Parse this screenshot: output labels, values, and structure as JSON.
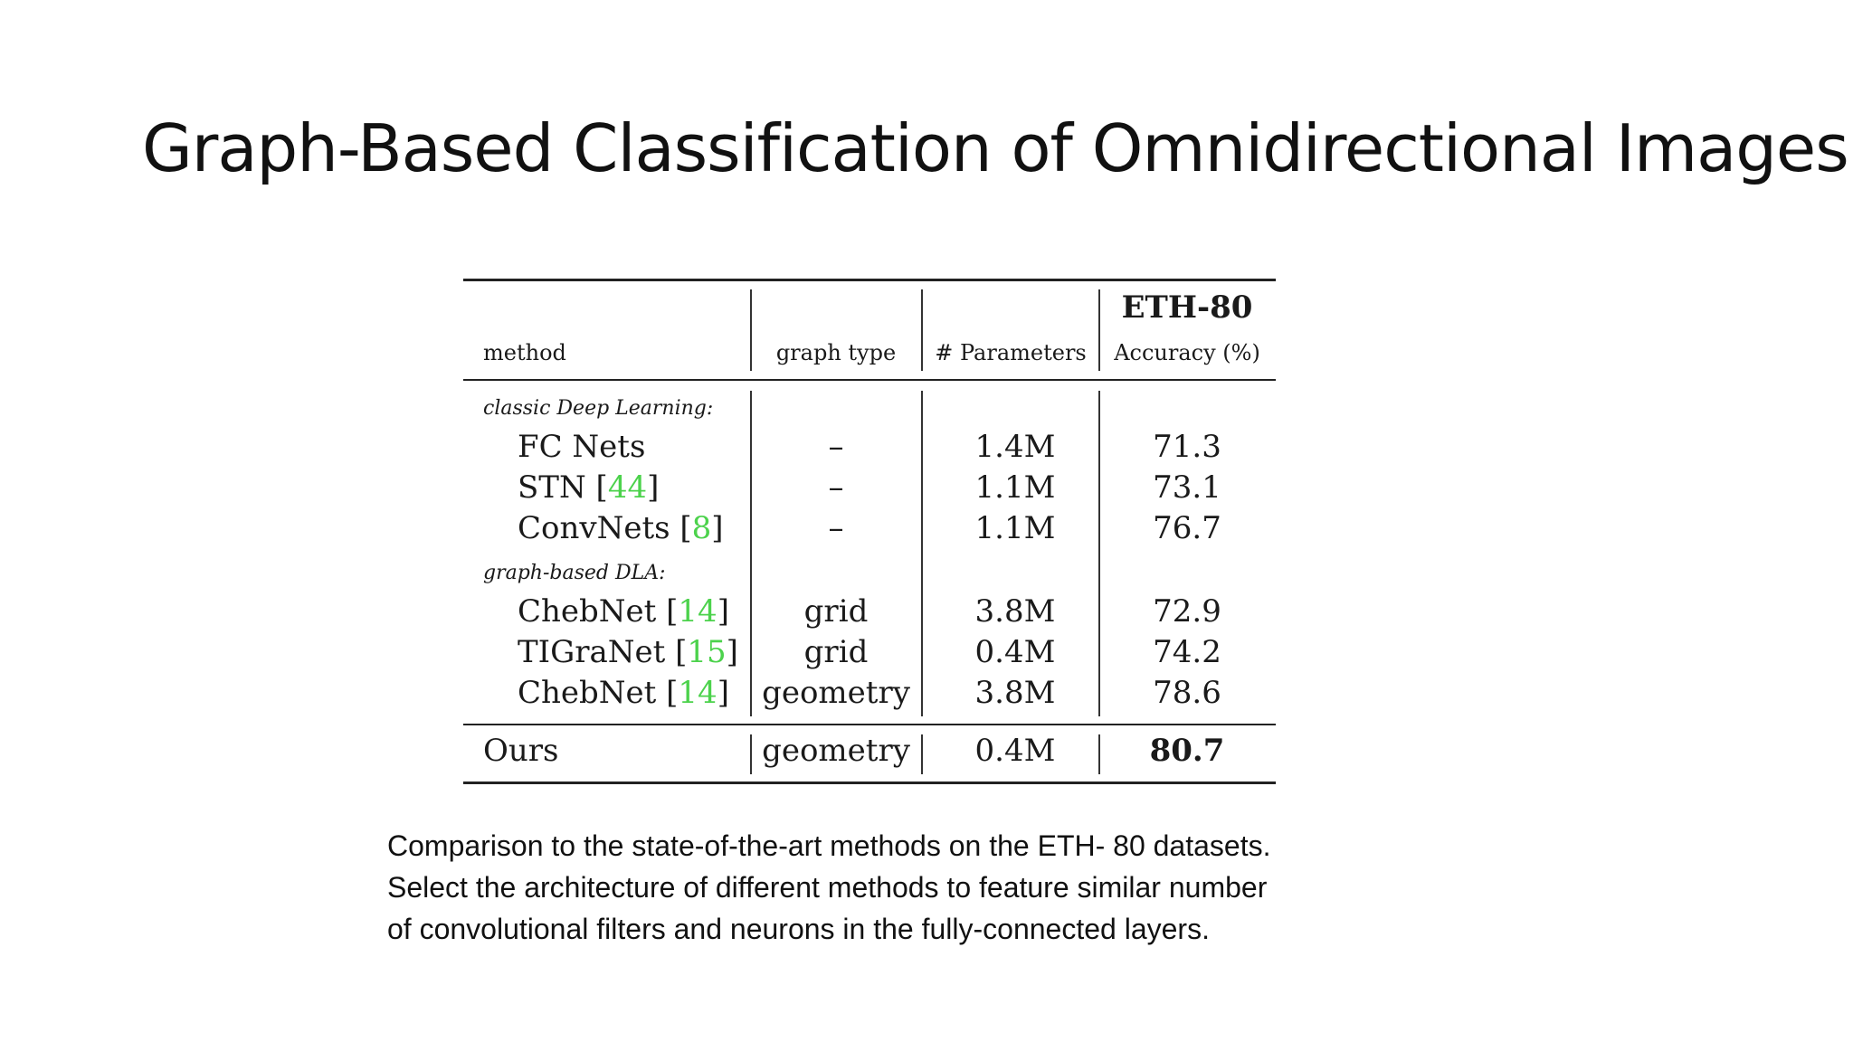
{
  "slide": {
    "title": "Graph-Based Classification of Omnidirectional Images"
  },
  "table": {
    "group_header": "ETH-80",
    "columns": [
      "method",
      "graph type",
      "# Parameters",
      "Accuracy (%)"
    ],
    "sections": [
      {
        "label": "classic Deep Learning:",
        "rows": [
          {
            "method": "FC Nets",
            "cite": "",
            "graph_type": "–",
            "params": "1.4M",
            "accuracy": "71.3"
          },
          {
            "method": "STN",
            "cite": "44",
            "graph_type": "–",
            "params": "1.1M",
            "accuracy": "73.1"
          },
          {
            "method": "ConvNets",
            "cite": "8",
            "graph_type": "–",
            "params": "1.1M",
            "accuracy": "76.7"
          }
        ]
      },
      {
        "label": "graph-based DLA:",
        "rows": [
          {
            "method": "ChebNet",
            "cite": "14",
            "graph_type": "grid",
            "params": "3.8M",
            "accuracy": "72.9"
          },
          {
            "method": "TIGraNet",
            "cite": "15",
            "graph_type": "grid",
            "params": "0.4M",
            "accuracy": "74.2"
          },
          {
            "method": "ChebNet",
            "cite": "14",
            "graph_type": "geometry",
            "params": "3.8M",
            "accuracy": "78.6"
          }
        ]
      }
    ],
    "ours": {
      "method": "Ours",
      "graph_type": "geometry",
      "params": "0.4M",
      "accuracy": "80.7"
    }
  },
  "caption": {
    "lines": [
      "Comparison to the state-of-the-art methods on the ETH- 80 datasets.",
      "Select the architecture of different methods to feature similar number",
      "of convolutional filters and neurons in the fully-connected layers."
    ]
  }
}
